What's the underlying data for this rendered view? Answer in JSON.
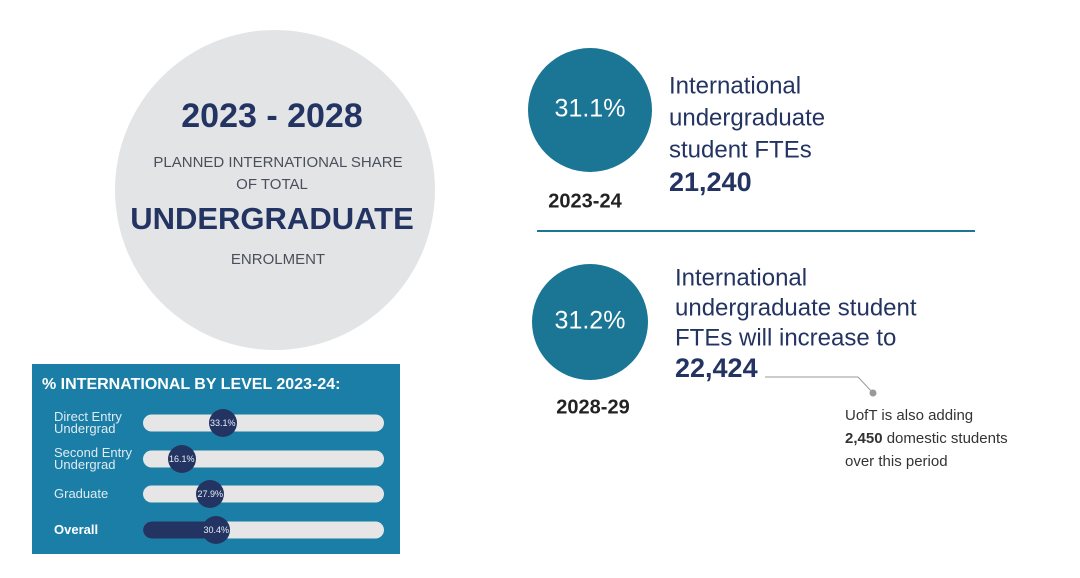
{
  "header": {
    "years": "2023 - 2028",
    "line1": "PLANNED INTERNATIONAL SHARE",
    "line2": "OF TOTAL",
    "emphasis": "UNDERGRADUATE",
    "line3": "ENROLMENT"
  },
  "chart_data": {
    "type": "bar",
    "orientation": "horizontal",
    "title": "% INTERNATIONAL BY LEVEL 2023-24:",
    "categories": [
      "Direct Entry Undergrad",
      "Second Entry Undergrad",
      "Graduate",
      "Overall"
    ],
    "values": [
      33.1,
      16.1,
      27.9,
      30.4
    ],
    "value_labels": [
      "33.1%",
      "16.1%",
      "27.9%",
      "30.4%"
    ],
    "xlim": [
      0,
      100
    ],
    "color": "#243462"
  },
  "stats": [
    {
      "percent": "31.1%",
      "year": "2023-24",
      "lines": [
        "International",
        "undergraduate",
        "student FTEs"
      ],
      "figure": "21,240"
    },
    {
      "percent": "31.2%",
      "year": "2028-29",
      "lines": [
        "International",
        "undergraduate student",
        "FTEs will increase to"
      ],
      "figure": "22,424"
    }
  ],
  "note": {
    "line1": "UofT is also adding",
    "bold": "2,450",
    "rest": "domestic students",
    "line3": "over this period"
  }
}
